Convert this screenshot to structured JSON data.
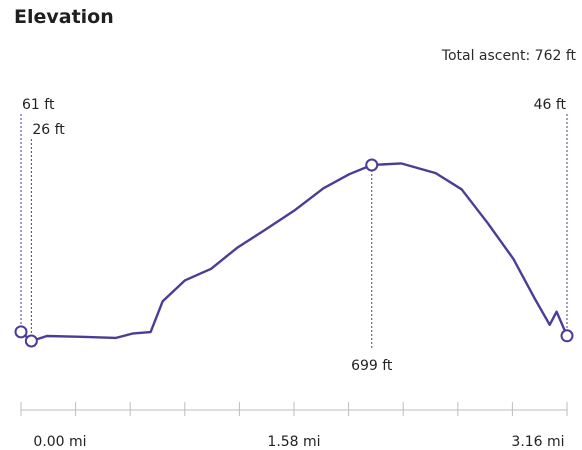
{
  "header": {
    "title": "Elevation",
    "total_ascent_label": "Total ascent:",
    "total_ascent_value": "762 ft"
  },
  "colors": {
    "line": "#4b3c97",
    "axis": "#bdbdbd",
    "marker_fill": "#ffffff"
  },
  "chart_data": {
    "type": "line",
    "title": "Elevation",
    "xlabel": "",
    "ylabel": "",
    "x_unit": "mi",
    "y_unit": "ft",
    "xlim": [
      0,
      3.16
    ],
    "ylim": [
      26,
      699
    ],
    "x_ticks": [
      "0.00 mi",
      "1.58 mi",
      "3.16 mi"
    ],
    "grid": false,
    "series": [
      {
        "values": [
          {
            "x": 0.0,
            "y": 61
          },
          {
            "x": 0.06,
            "y": 26
          },
          {
            "x": 0.15,
            "y": 45
          },
          {
            "x": 0.35,
            "y": 42
          },
          {
            "x": 0.55,
            "y": 38
          },
          {
            "x": 0.65,
            "y": 55
          },
          {
            "x": 0.75,
            "y": 60
          },
          {
            "x": 0.82,
            "y": 178
          },
          {
            "x": 0.95,
            "y": 258
          },
          {
            "x": 1.1,
            "y": 302
          },
          {
            "x": 1.25,
            "y": 382
          },
          {
            "x": 1.4,
            "y": 446
          },
          {
            "x": 1.58,
            "y": 524
          },
          {
            "x": 1.75,
            "y": 610
          },
          {
            "x": 1.9,
            "y": 664
          },
          {
            "x": 2.03,
            "y": 699
          },
          {
            "x": 2.2,
            "y": 705
          },
          {
            "x": 2.4,
            "y": 668
          },
          {
            "x": 2.55,
            "y": 606
          },
          {
            "x": 2.7,
            "y": 478
          },
          {
            "x": 2.85,
            "y": 340
          },
          {
            "x": 2.97,
            "y": 192
          },
          {
            "x": 3.06,
            "y": 88
          },
          {
            "x": 3.1,
            "y": 138
          },
          {
            "x": 3.16,
            "y": 46
          }
        ]
      }
    ],
    "markers": [
      {
        "x": 0.0,
        "y": 61,
        "label": "61 ft"
      },
      {
        "x": 0.06,
        "y": 26,
        "label": "26 ft"
      },
      {
        "x": 2.03,
        "y": 699,
        "label": "699 ft"
      },
      {
        "x": 3.16,
        "y": 46,
        "label": "46 ft"
      }
    ]
  }
}
